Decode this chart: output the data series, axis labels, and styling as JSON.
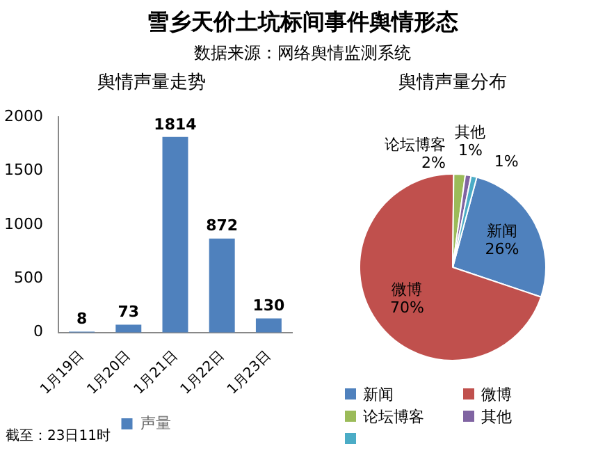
{
  "chart_data": [
    {
      "type": "other",
      "title": "雪乡天价土坑标间事件舆情形态",
      "subtitle": "数据来源：网络舆情监测系统",
      "annotations": [
        "截至：23日11时"
      ]
    },
    {
      "type": "bar",
      "title": "舆情声量走势",
      "categories": [
        "1月19日",
        "1月20日",
        "1月21日",
        "1月22日",
        "1月23日"
      ],
      "series": [
        {
          "name": "声量",
          "color": "#4f81bd",
          "values": [
            8,
            73,
            1814,
            872,
            130
          ]
        }
      ],
      "ylim": [
        0,
        2000
      ],
      "yticks": [
        0,
        500,
        1000,
        1500,
        2000
      ],
      "data_labels": true,
      "legend": "bottom"
    },
    {
      "type": "pie",
      "title": "舆情声量分布",
      "categories": [
        "新闻",
        "微博",
        "论坛博客",
        "其他",
        null
      ],
      "values": [
        26,
        70,
        2,
        1,
        1
      ],
      "colors": [
        "#4f81bd",
        "#c0504d",
        "#9bbb59",
        "#8064a2",
        "#4bacc6"
      ],
      "value_labels": [
        "26%",
        "70%",
        "2%",
        "1%",
        "1%"
      ],
      "legend": "bottom"
    }
  ]
}
